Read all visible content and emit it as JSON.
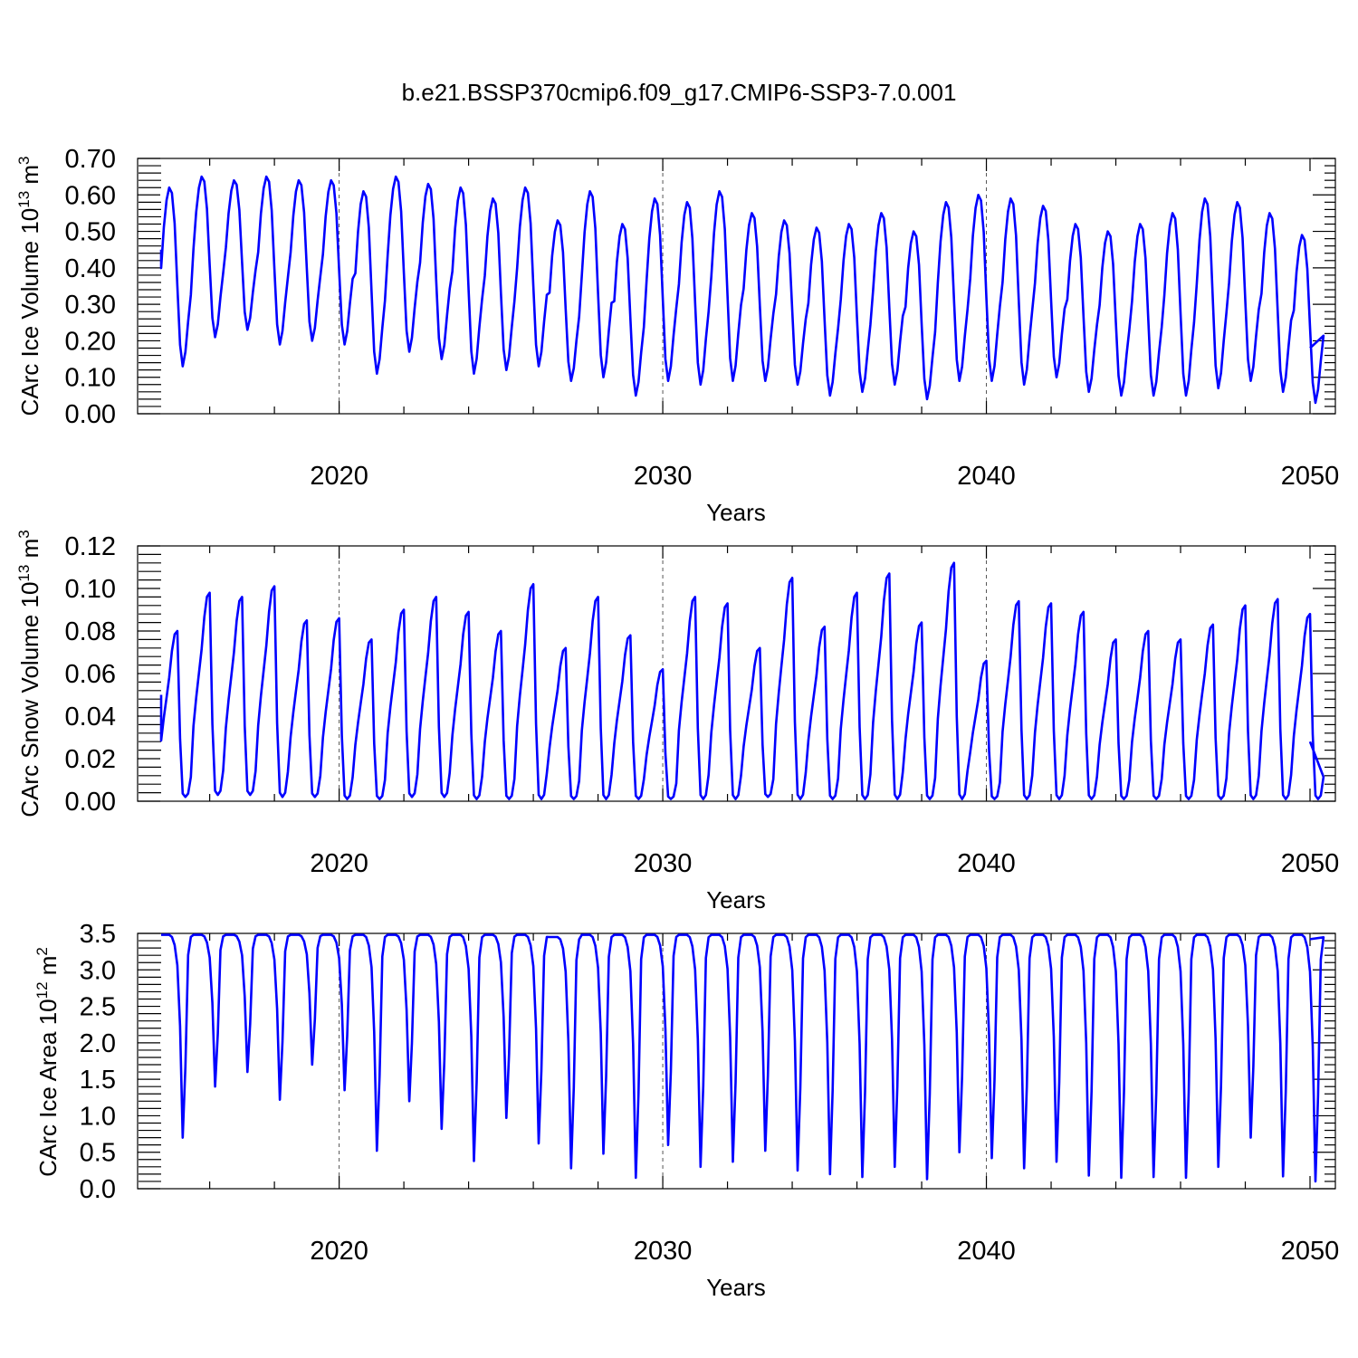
{
  "figure": {
    "title": "b.e21.BSSP370cmip6.f09_g17.CMIP6-SSP3-7.0.001"
  },
  "chart_data": [
    {
      "type": "line",
      "ylabel_main": "CArc Ice Volume 10",
      "ylabel_exp": "13",
      "ylabel_unit": " m",
      "ylabel_unit_exp": "3",
      "xlabel": "Years",
      "xlim": [
        2014.5,
        2050
      ],
      "ylim": [
        0,
        0.7
      ],
      "x_ticks": [
        "2020",
        "2030",
        "2040",
        "2050"
      ],
      "y_ticks": [
        "0.00",
        "0.10",
        "0.20",
        "0.30",
        "0.40",
        "0.50",
        "0.60",
        "0.70"
      ],
      "grid": "dashed vertical lines at 2020, 2030, 2040",
      "line_color": "#0000ff",
      "annual_peaks": [
        0.62,
        0.65,
        0.64,
        0.65,
        0.64,
        0.64,
        0.61,
        0.65,
        0.63,
        0.62,
        0.59,
        0.62,
        0.53,
        0.61,
        0.52,
        0.59,
        0.58,
        0.61,
        0.55,
        0.53,
        0.51,
        0.52,
        0.55,
        0.5,
        0.58,
        0.6,
        0.59,
        0.57,
        0.52,
        0.5,
        0.52,
        0.55,
        0.59,
        0.58,
        0.55,
        0.49
      ],
      "annual_minima": [
        0.13,
        0.21,
        0.23,
        0.19,
        0.2,
        0.19,
        0.11,
        0.17,
        0.15,
        0.11,
        0.12,
        0.13,
        0.09,
        0.1,
        0.05,
        0.09,
        0.08,
        0.09,
        0.09,
        0.08,
        0.05,
        0.06,
        0.08,
        0.04,
        0.09,
        0.09,
        0.08,
        0.1,
        0.06,
        0.05,
        0.05,
        0.05,
        0.07,
        0.09,
        0.06,
        0.03
      ],
      "start_value": 0.45,
      "end_value": 0.18
    },
    {
      "type": "line",
      "ylabel_main": "CArc Snow Volume 10",
      "ylabel_exp": "13",
      "ylabel_unit": " m",
      "ylabel_unit_exp": "3",
      "xlabel": "Years",
      "xlim": [
        2014.5,
        2050
      ],
      "ylim": [
        0,
        0.12
      ],
      "x_ticks": [
        "2020",
        "2030",
        "2040",
        "2050"
      ],
      "y_ticks": [
        "0.00",
        "0.02",
        "0.04",
        "0.06",
        "0.08",
        "0.10",
        "0.12"
      ],
      "grid": "dashed vertical lines at 2020, 2030, 2040",
      "line_color": "#0000ff",
      "annual_peaks": [
        0.08,
        0.098,
        0.096,
        0.101,
        0.085,
        0.086,
        0.076,
        0.09,
        0.096,
        0.089,
        0.08,
        0.102,
        0.072,
        0.096,
        0.078,
        0.062,
        0.096,
        0.093,
        0.072,
        0.105,
        0.082,
        0.098,
        0.107,
        0.084,
        0.112,
        0.066,
        0.094,
        0.093,
        0.089,
        0.076,
        0.08,
        0.076,
        0.083,
        0.092,
        0.095,
        0.088
      ],
      "annual_minima": [
        0.002,
        0.003,
        0.003,
        0.002,
        0.002,
        0.001,
        0.001,
        0.002,
        0.002,
        0.001,
        0.001,
        0.001,
        0.001,
        0.001,
        0.001,
        0.001,
        0.001,
        0.001,
        0.002,
        0.001,
        0.001,
        0.001,
        0.001,
        0.001,
        0.001,
        0.001,
        0.001,
        0.001,
        0.001,
        0.001,
        0.001,
        0.001,
        0.001,
        0.001,
        0.001,
        0.001
      ],
      "start_value": 0.05,
      "end_value": 0.028
    },
    {
      "type": "line",
      "ylabel_main": "CArc Ice Area 10",
      "ylabel_exp": "12",
      "ylabel_unit": " m",
      "ylabel_unit_exp": "2",
      "xlabel": "Years",
      "xlim": [
        2014.5,
        2050
      ],
      "ylim": [
        0,
        3.5
      ],
      "x_ticks": [
        "2020",
        "2030",
        "2040",
        "2050"
      ],
      "y_ticks": [
        "0.0",
        "0.5",
        "1.0",
        "1.5",
        "2.0",
        "2.5",
        "3.0",
        "3.5"
      ],
      "grid": "dashed vertical lines at 2020, 2030, 2040",
      "line_color": "#0000ff",
      "annual_peaks": [
        3.48,
        3.48,
        3.48,
        3.48,
        3.48,
        3.48,
        3.48,
        3.48,
        3.48,
        3.48,
        3.48,
        3.48,
        3.45,
        3.48,
        3.48,
        3.48,
        3.48,
        3.48,
        3.48,
        3.48,
        3.48,
        3.48,
        3.48,
        3.48,
        3.48,
        3.48,
        3.48,
        3.48,
        3.48,
        3.48,
        3.48,
        3.48,
        3.48,
        3.48,
        3.48,
        3.48
      ],
      "annual_minima": [
        0.7,
        1.4,
        1.6,
        1.22,
        1.7,
        1.35,
        0.52,
        1.2,
        0.82,
        0.38,
        0.97,
        0.62,
        0.28,
        0.48,
        0.15,
        0.6,
        0.3,
        0.37,
        0.52,
        0.25,
        0.2,
        0.16,
        0.3,
        0.13,
        0.5,
        0.42,
        0.28,
        0.37,
        0.18,
        0.15,
        0.16,
        0.15,
        0.3,
        0.7,
        0.17,
        0.1
      ],
      "start_value": 3.48,
      "end_value": 3.42
    }
  ]
}
